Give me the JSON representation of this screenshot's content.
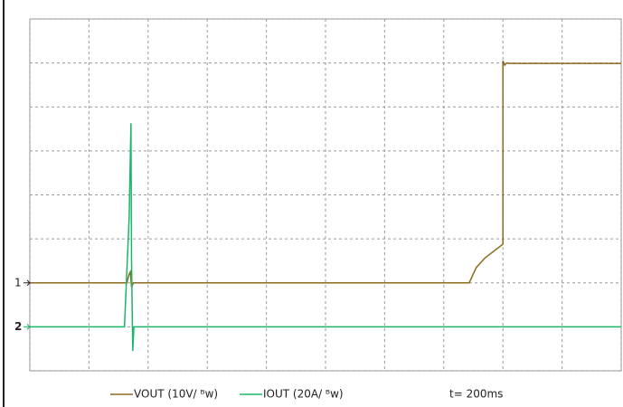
{
  "chart_data": {
    "type": "line",
    "grid": true,
    "xlim": [
      0,
      10
    ],
    "ylim": [
      0,
      8
    ],
    "xticks": [
      0,
      1,
      2,
      3,
      4,
      5,
      6,
      7,
      8,
      9,
      10
    ],
    "yticks": [
      0,
      1,
      2,
      3,
      4,
      5,
      6,
      7,
      8
    ],
    "series": [
      {
        "name": "VOUT (10V/ ᴮw)",
        "channel": "1",
        "color": "#8a6b1e",
        "x": [
          0,
          1.64,
          1.68,
          1.7,
          1.72,
          1.75,
          7.43,
          7.55,
          7.7,
          8.0,
          8.0,
          8.03,
          8.06,
          8.1,
          10
        ],
        "values": [
          2,
          2,
          2.2,
          2.25,
          1.9,
          2,
          2,
          2.35,
          2.57,
          2.88,
          7.05,
          6.95,
          7.0,
          6.99,
          6.99
        ]
      },
      {
        "name": "IOUT (20A/ ᴮw)",
        "channel": "2",
        "color": "#1cb56a",
        "x": [
          0,
          1.6,
          1.68,
          1.71,
          1.72,
          1.74,
          1.76,
          10
        ],
        "values": [
          1,
          1,
          3.5,
          5.63,
          2.5,
          0.45,
          1,
          1
        ]
      }
    ],
    "annotation": "t= 200ms"
  }
}
